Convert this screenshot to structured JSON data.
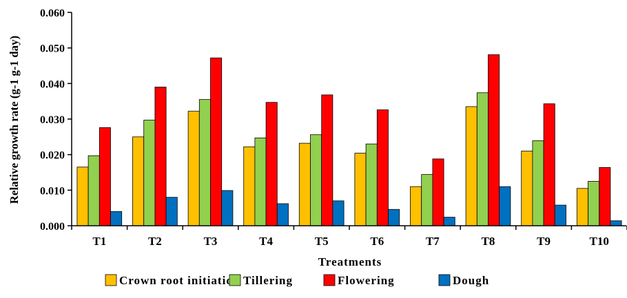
{
  "chart_data": {
    "type": "bar",
    "title": "",
    "xlabel": "Treatments",
    "ylabel": "Relative growth rate (g-1 g-1 day)",
    "ylim": [
      0,
      0.06
    ],
    "yticks": [
      "0.000",
      "0.010",
      "0.020",
      "0.030",
      "0.040",
      "0.050",
      "0.060"
    ],
    "categories": [
      "T1",
      "T2",
      "T3",
      "T4",
      "T5",
      "T6",
      "T7",
      "T8",
      "T9",
      "T10"
    ],
    "series": [
      {
        "name": "Crown root initiation",
        "color": "#FFC000",
        "values": [
          0.0165,
          0.025,
          0.0322,
          0.0222,
          0.0232,
          0.0204,
          0.011,
          0.0335,
          0.021,
          0.0105
        ]
      },
      {
        "name": "Tillering",
        "color": "#92D050",
        "values": [
          0.0197,
          0.0297,
          0.0355,
          0.0247,
          0.0256,
          0.023,
          0.0144,
          0.0374,
          0.0239,
          0.0125
        ]
      },
      {
        "name": "Flowering",
        "color": "#FF0000",
        "values": [
          0.0276,
          0.039,
          0.0472,
          0.0347,
          0.0368,
          0.0326,
          0.0188,
          0.0481,
          0.0343,
          0.0164
        ]
      },
      {
        "name": "Dough",
        "color": "#0070C0",
        "values": [
          0.004,
          0.008,
          0.0099,
          0.0062,
          0.007,
          0.0046,
          0.0024,
          0.011,
          0.0058,
          0.0014
        ]
      }
    ],
    "grid": false,
    "legend_position": "bottom"
  }
}
